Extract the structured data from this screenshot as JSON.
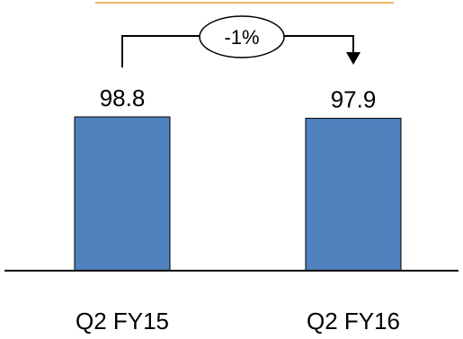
{
  "chart_data": {
    "type": "bar",
    "categories": [
      "Q2 FY15",
      "Q2 FY16"
    ],
    "values": [
      98.8,
      97.9
    ],
    "value_labels": [
      "98.8",
      "97.9"
    ],
    "change_label": "-1%",
    "title": "",
    "xlabel": "",
    "ylabel": "",
    "grid": false,
    "legend": "none",
    "colors": {
      "bar": "#4F81BD",
      "bar_border": "#000000",
      "accent_line": "#F2B26B",
      "axis": "#000000"
    }
  }
}
